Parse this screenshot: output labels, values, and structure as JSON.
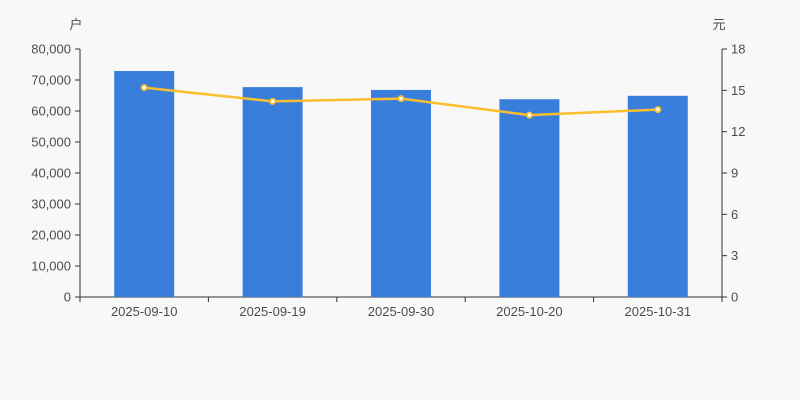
{
  "page": {
    "background": "#f8f8f8"
  },
  "style": {
    "axis_color": "#333333",
    "text_color": "#4d4d4d",
    "background": "#f8f8f8",
    "bar_color": "#3a7edc",
    "line_color": "#fbbe2c",
    "marker_fill": "#ffffff"
  },
  "chart_data": {
    "type": "bar",
    "subtype": "dual-axis bar + line combo",
    "title": "",
    "xlabel": "",
    "categories": [
      "2025-09-10",
      "2025-09-19",
      "2025-09-30",
      "2025-10-20",
      "2025-10-31"
    ],
    "series": [
      {
        "id": "bar-series",
        "type": "bar",
        "axis": "left",
        "unit": "户",
        "color": "#3a7edc",
        "values": [
          72900,
          67700,
          66800,
          63800,
          64900
        ]
      },
      {
        "id": "line-series",
        "type": "line",
        "axis": "right",
        "unit": "元",
        "color": "#fbbe2c",
        "marker_fill": "#ffffff",
        "values": [
          15.2,
          14.2,
          14.4,
          13.2,
          13.6
        ]
      }
    ],
    "left_axis": {
      "label": "户",
      "min": 0,
      "max": 80000,
      "tick_step": 10000,
      "tick_labels": [
        "0",
        "10,000",
        "20,000",
        "30,000",
        "40,000",
        "50,000",
        "60,000",
        "70,000",
        "80,000"
      ]
    },
    "right_axis": {
      "label": "元",
      "min": 0,
      "max": 18,
      "tick_step": 3,
      "tick_labels": [
        "0",
        "3",
        "6",
        "9",
        "12",
        "15",
        "18"
      ]
    },
    "grid": false,
    "legend": "none"
  }
}
